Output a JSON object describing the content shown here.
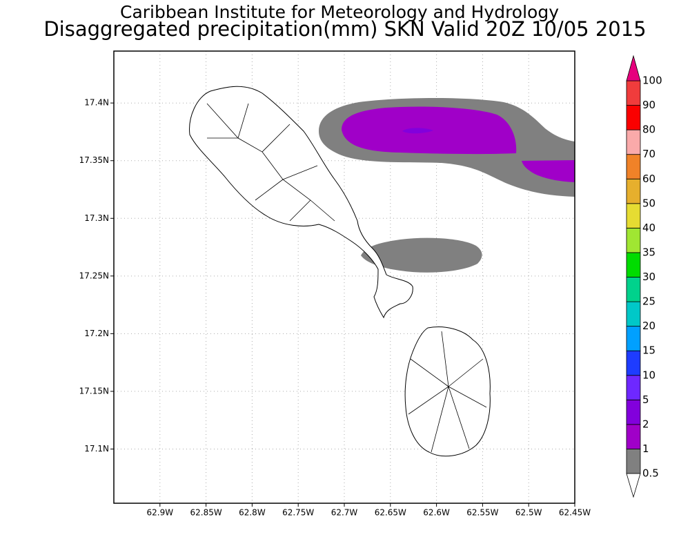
{
  "chart_data": {
    "type": "contour-map",
    "title": "Caribbean Institute for Meteorology and Hydrology",
    "subtitle": "Disaggregated precipitation(mm) SKN Valid 20Z 10/05 2015",
    "xlim": [
      -62.95,
      -62.45
    ],
    "ylim": [
      17.053,
      17.445
    ],
    "xticks": [
      {
        "value": -62.9,
        "label": "62.9W"
      },
      {
        "value": -62.85,
        "label": "62.85W"
      },
      {
        "value": -62.8,
        "label": "62.8W"
      },
      {
        "value": -62.75,
        "label": "62.75W"
      },
      {
        "value": -62.7,
        "label": "62.7W"
      },
      {
        "value": -62.65,
        "label": "62.65W"
      },
      {
        "value": -62.6,
        "label": "62.6W"
      },
      {
        "value": -62.55,
        "label": "62.55W"
      },
      {
        "value": -62.5,
        "label": "62.5W"
      },
      {
        "value": -62.45,
        "label": "62.45W"
      }
    ],
    "yticks": [
      {
        "value": 17.1,
        "label": "17.1N"
      },
      {
        "value": 17.15,
        "label": "17.15N"
      },
      {
        "value": 17.2,
        "label": "17.2N"
      },
      {
        "value": 17.25,
        "label": "17.25N"
      },
      {
        "value": 17.3,
        "label": "17.3N"
      },
      {
        "value": 17.35,
        "label": "17.35N"
      },
      {
        "value": 17.4,
        "label": "17.4N"
      }
    ],
    "grid": true,
    "colorbar": {
      "levels": [
        0.5,
        1,
        2,
        5,
        10,
        15,
        20,
        25,
        30,
        35,
        40,
        50,
        60,
        70,
        80,
        90,
        100
      ],
      "colors": [
        "#808080",
        "#a000c8",
        "#8200dc",
        "#6e28ff",
        "#1e3cff",
        "#00a0ff",
        "#00c8c8",
        "#00d28c",
        "#00dc00",
        "#a0e632",
        "#e6dc32",
        "#e6af2d",
        "#f08228",
        "#faaaaa",
        "#fa0000",
        "#f03c3c"
      ],
      "under_color": "#ffffff",
      "over_color": "#e6007d"
    }
  }
}
